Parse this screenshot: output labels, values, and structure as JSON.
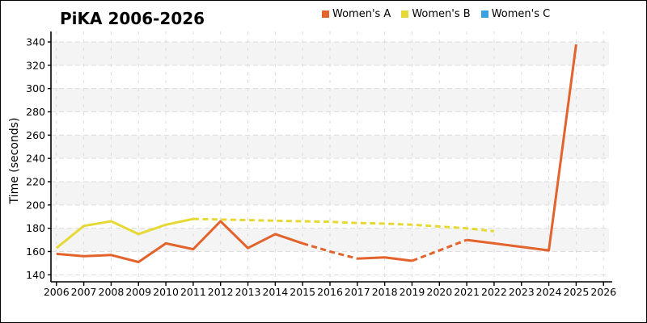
{
  "chart_data": {
    "type": "line",
    "title": "PiKA 2006-2026",
    "xlabel": "",
    "ylabel": "Time (seconds)",
    "xlim": [
      2005.8,
      2026.2
    ],
    "ylim": [
      134,
      349
    ],
    "xticks": [
      2006,
      2007,
      2008,
      2009,
      2010,
      2011,
      2012,
      2013,
      2014,
      2015,
      2016,
      2017,
      2018,
      2019,
      2020,
      2021,
      2022,
      2023,
      2024,
      2025,
      2026
    ],
    "yticks": [
      140,
      160,
      180,
      200,
      220,
      240,
      260,
      280,
      300,
      320,
      340
    ],
    "grid": "dashed",
    "legend_position": "top-center",
    "band_ranges": [
      [
        160,
        180
      ],
      [
        200,
        220
      ],
      [
        240,
        260
      ],
      [
        280,
        300
      ],
      [
        320,
        340
      ]
    ],
    "colors": {
      "band": "#f4f4f4",
      "grid": "#dcdcdc",
      "axis": "#000000",
      "text": "#000000",
      "womens_a": "#e2632c",
      "womens_b": "#e6d936",
      "womens_c": "#3aa0e0"
    },
    "series": [
      {
        "name": "Women's A",
        "color": "#e2632c",
        "points": [
          [
            2006,
            158
          ],
          [
            2007,
            156
          ],
          [
            2008,
            157
          ],
          [
            2009,
            151
          ],
          [
            2010,
            167
          ],
          [
            2011,
            162
          ],
          [
            2012,
            186
          ],
          [
            2013,
            163
          ],
          [
            2014,
            175
          ],
          [
            2015,
            167
          ],
          [
            2016,
            160
          ],
          [
            2017,
            154
          ],
          [
            2018,
            155
          ],
          [
            2019,
            152
          ],
          [
            2020,
            161
          ],
          [
            2021,
            170
          ],
          [
            2022,
            167
          ],
          [
            2023,
            164
          ],
          [
            2024,
            161
          ],
          [
            2025,
            338
          ]
        ],
        "segments": [
          {
            "style": "solid",
            "from": 2006,
            "to": 2015
          },
          {
            "style": "dashed",
            "from": 2015,
            "to": 2017
          },
          {
            "style": "solid",
            "from": 2017,
            "to": 2019
          },
          {
            "style": "dashed",
            "from": 2019,
            "to": 2021
          },
          {
            "style": "solid",
            "from": 2021,
            "to": 2025
          }
        ]
      },
      {
        "name": "Women's B",
        "color": "#e6d936",
        "points": [
          [
            2006,
            163
          ],
          [
            2007,
            182
          ],
          [
            2008,
            186
          ],
          [
            2009,
            175
          ],
          [
            2010,
            183
          ],
          [
            2011,
            188
          ],
          [
            2012,
            187.5
          ],
          [
            2013,
            187
          ],
          [
            2014,
            186.5
          ],
          [
            2015,
            186
          ],
          [
            2016,
            185.5
          ],
          [
            2017,
            184.5
          ],
          [
            2018,
            184
          ],
          [
            2019,
            183
          ],
          [
            2020,
            181.5
          ],
          [
            2021,
            180
          ],
          [
            2022,
            177.5
          ]
        ],
        "segments": [
          {
            "style": "solid",
            "from": 2006,
            "to": 2011
          },
          {
            "style": "dashed",
            "from": 2011,
            "to": 2022
          }
        ]
      },
      {
        "name": "Women's C",
        "color": "#3aa0e0",
        "points": [],
        "segments": []
      }
    ]
  }
}
